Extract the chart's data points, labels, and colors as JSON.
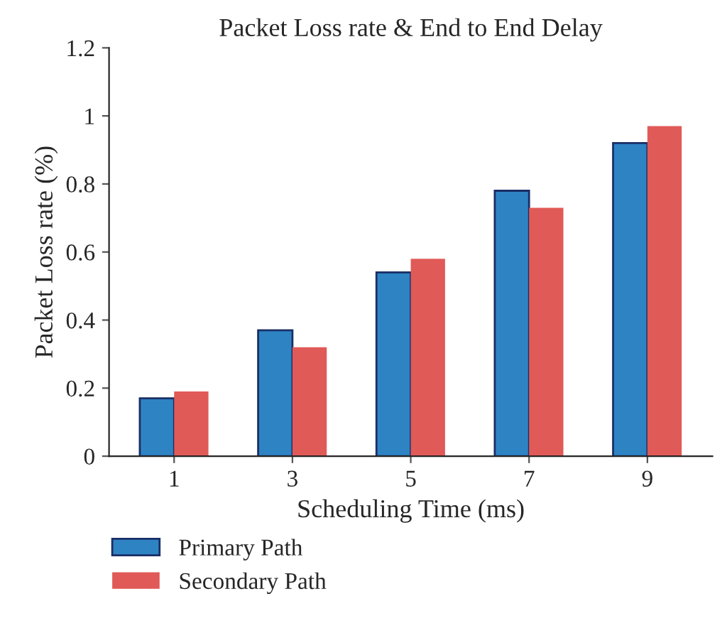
{
  "chart_data": {
    "type": "bar",
    "title": "Packet Loss rate & End to End Delay",
    "xlabel": "Scheduling Time (ms)",
    "ylabel": "Packet Loss rate (%)",
    "categories": [
      "1",
      "3",
      "5",
      "7",
      "9"
    ],
    "series": [
      {
        "name": "Primary Path",
        "color": "#2e83c3",
        "values": [
          0.17,
          0.37,
          0.54,
          0.78,
          0.92
        ]
      },
      {
        "name": "Secondary Path",
        "color": "#e05a57",
        "values": [
          0.19,
          0.32,
          0.58,
          0.73,
          0.97
        ]
      }
    ],
    "ylim": [
      0,
      1.2
    ],
    "yticks": [
      0,
      0.2,
      0.4,
      0.6,
      0.8,
      1,
      1.2
    ],
    "grid": false,
    "legend": "bottom left"
  }
}
